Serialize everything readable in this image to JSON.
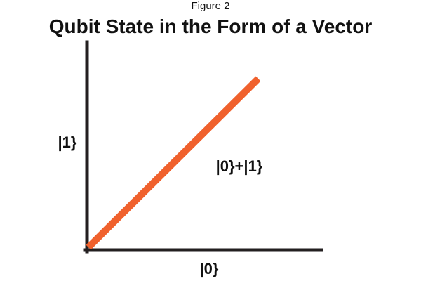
{
  "figure": {
    "label": "Figure 2",
    "title": "Qubit State in the Form of a Vector"
  },
  "axes": {
    "x_label": "|0}",
    "y_label": "|1}"
  },
  "vector": {
    "label": "|0}+|1}",
    "color": "#f0612d"
  },
  "colors": {
    "axis": "#231f20",
    "text": "#111111"
  }
}
